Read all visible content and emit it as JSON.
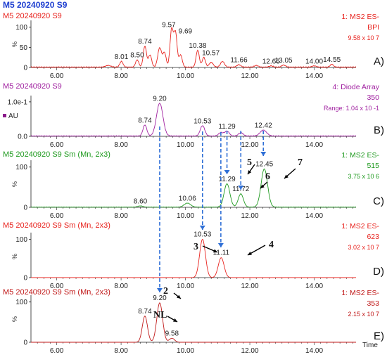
{
  "header": {
    "title": "M5 20240920 S9"
  },
  "x_axis_label": "Time",
  "chart_data": [
    {
      "type": "line",
      "panel_label": "A)",
      "sample": "M5 20240920 S9",
      "right_labels": [
        "1: MS2 ES-",
        "BPI",
        "9.58 x 10 7"
      ],
      "color": "#e8231e",
      "ylabel": "%",
      "y_ticks": [
        "0",
        "50",
        "100"
      ],
      "xlim": [
        5.2,
        15.3
      ],
      "x_ticks": [
        "6.00",
        "8.00",
        "10.00",
        "12.00",
        "14.00"
      ],
      "peak_labels": [
        {
          "x": 8.01,
          "text": "8.01"
        },
        {
          "x": 8.5,
          "text": "8.50"
        },
        {
          "x": 8.74,
          "text": "8.74"
        },
        {
          "x": 9.57,
          "text": "9.57"
        },
        {
          "x": 9.69,
          "text": "9.69"
        },
        {
          "x": 10.38,
          "text": "10.38"
        },
        {
          "x": 10.57,
          "text": "10.57"
        },
        {
          "x": 11.66,
          "text": "11.66"
        },
        {
          "x": 12.66,
          "text": "12.66"
        },
        {
          "x": 13.05,
          "text": "13.05"
        },
        {
          "x": 14.0,
          "text": "14.00"
        },
        {
          "x": 14.55,
          "text": "14.55"
        }
      ],
      "peaks": [
        {
          "x": 7.6,
          "h": 4,
          "w": 0.08
        },
        {
          "x": 8.01,
          "h": 14,
          "w": 0.05
        },
        {
          "x": 8.5,
          "h": 18,
          "w": 0.05
        },
        {
          "x": 8.74,
          "h": 52,
          "w": 0.05
        },
        {
          "x": 8.9,
          "h": 30,
          "w": 0.05
        },
        {
          "x": 9.2,
          "h": 48,
          "w": 0.06
        },
        {
          "x": 9.35,
          "h": 35,
          "w": 0.05
        },
        {
          "x": 9.57,
          "h": 93,
          "w": 0.05
        },
        {
          "x": 9.69,
          "h": 85,
          "w": 0.05
        },
        {
          "x": 9.85,
          "h": 30,
          "w": 0.05
        },
        {
          "x": 10.38,
          "h": 42,
          "w": 0.05
        },
        {
          "x": 10.57,
          "h": 24,
          "w": 0.05
        },
        {
          "x": 10.8,
          "h": 12,
          "w": 0.06
        },
        {
          "x": 11.15,
          "h": 14,
          "w": 0.06
        },
        {
          "x": 11.66,
          "h": 6,
          "w": 0.06
        },
        {
          "x": 12.2,
          "h": 4,
          "w": 0.06
        },
        {
          "x": 12.66,
          "h": 3,
          "w": 0.06
        },
        {
          "x": 13.05,
          "h": 5,
          "w": 0.06
        },
        {
          "x": 14.0,
          "h": 3,
          "w": 0.06
        },
        {
          "x": 14.55,
          "h": 7,
          "w": 0.05
        }
      ],
      "baseline_noise": 2,
      "ylim": [
        0,
        110
      ]
    },
    {
      "type": "line",
      "panel_label": "B)",
      "sample": "M5 20240920 S9",
      "right_labels": [
        "4: Diode Array",
        "350",
        "Range:  1.04 x 10 -1"
      ],
      "color": "#a020a0",
      "ylabel": "AU",
      "y_ticks": [
        "0.0",
        "1.0e-1"
      ],
      "xlim": [
        5.2,
        15.3
      ],
      "x_ticks": [
        "6.00",
        "8.00",
        "10.00",
        "12.00",
        "14.00"
      ],
      "peak_labels": [
        {
          "x": 8.74,
          "text": "8.74"
        },
        {
          "x": 9.2,
          "text": "9.20"
        },
        {
          "x": 10.53,
          "text": "10.53"
        },
        {
          "x": 11.29,
          "text": "11.29"
        },
        {
          "x": 12.42,
          "text": "12.42"
        }
      ],
      "peaks": [
        {
          "x": 8.74,
          "h": 32,
          "w": 0.06
        },
        {
          "x": 9.2,
          "h": 95,
          "w": 0.1
        },
        {
          "x": 10.53,
          "h": 30,
          "w": 0.07
        },
        {
          "x": 11.1,
          "h": 10,
          "w": 0.07
        },
        {
          "x": 11.29,
          "h": 14,
          "w": 0.07
        },
        {
          "x": 11.72,
          "h": 10,
          "w": 0.07
        },
        {
          "x": 12.42,
          "h": 17,
          "w": 0.1
        }
      ],
      "baseline_noise": 2,
      "ylim": [
        0,
        110
      ]
    },
    {
      "type": "line",
      "panel_label": "C)",
      "sample": "M5 20240920 S9 Sm (Mn, 2x3)",
      "right_labels": [
        "1: MS2 ES-",
        "515",
        "3.75 x 10 6"
      ],
      "color": "#1f9a1f",
      "ylabel": "%",
      "y_ticks": [
        "0",
        "100"
      ],
      "xlim": [
        5.2,
        15.3
      ],
      "x_ticks": [
        "6.00",
        "8.00",
        "10.00",
        "12.00",
        "14.00"
      ],
      "peak_labels": [
        {
          "x": 8.6,
          "text": "8.60"
        },
        {
          "x": 10.06,
          "text": "10.06"
        },
        {
          "x": 11.29,
          "text": "11.29"
        },
        {
          "x": 11.72,
          "text": "11.72"
        },
        {
          "x": 12.45,
          "text": "12.45"
        }
      ],
      "peaks": [
        {
          "x": 8.6,
          "h": 3,
          "w": 0.08
        },
        {
          "x": 10.06,
          "h": 10,
          "w": 0.1
        },
        {
          "x": 11.29,
          "h": 58,
          "w": 0.09
        },
        {
          "x": 11.72,
          "h": 33,
          "w": 0.08
        },
        {
          "x": 12.45,
          "h": 95,
          "w": 0.1
        }
      ],
      "baseline_noise": 1,
      "ylim": [
        0,
        110
      ]
    },
    {
      "type": "line",
      "panel_label": "D)",
      "sample": "M5 20240920 S9 Sm (Mn, 2x3)",
      "right_labels": [
        "1: MS2 ES-",
        "623",
        "3.02 x 10 7"
      ],
      "color": "#e8231e",
      "ylabel": "%",
      "y_ticks": [
        "0",
        "100"
      ],
      "xlim": [
        5.2,
        15.3
      ],
      "x_ticks": [
        "6.00",
        "8.00",
        "10.00",
        "12.00",
        "14.00"
      ],
      "peak_labels": [
        {
          "x": 10.53,
          "text": "10.53"
        },
        {
          "x": 11.11,
          "text": "11.11"
        }
      ],
      "peaks": [
        {
          "x": 10.53,
          "h": 100,
          "w": 0.09
        },
        {
          "x": 11.11,
          "h": 52,
          "w": 0.09
        }
      ],
      "baseline_noise": 0,
      "ylim": [
        0,
        110
      ]
    },
    {
      "type": "line",
      "panel_label": "E)",
      "sample": "M5 20240920 S9 Sm (Mn, 2x3)",
      "right_labels": [
        "1: MS2 ES-",
        "353",
        "2.15 x 10 7"
      ],
      "color": "#c01818",
      "ylabel": "%",
      "y_ticks": [
        "0",
        "100"
      ],
      "xlim": [
        5.2,
        15.3
      ],
      "x_ticks": [
        "6.00",
        "8.00",
        "10.00",
        "12.00",
        "14.00"
      ],
      "peak_labels": [
        {
          "x": 8.74,
          "text": "8.74"
        },
        {
          "x": 9.2,
          "text": "9.20"
        },
        {
          "x": 9.58,
          "text": "9.58"
        }
      ],
      "peaks": [
        {
          "x": 8.74,
          "h": 65,
          "w": 0.08
        },
        {
          "x": 9.2,
          "h": 98,
          "w": 0.09
        },
        {
          "x": 9.58,
          "h": 10,
          "w": 0.08
        }
      ],
      "baseline_noise": 0,
      "ylim": [
        0,
        110
      ]
    }
  ],
  "annotations": {
    "compound_labels": [
      {
        "panel": 2,
        "text": "5"
      },
      {
        "panel": 2,
        "text": "6"
      },
      {
        "panel": 2,
        "text": "7"
      },
      {
        "panel": 3,
        "text": "3"
      },
      {
        "panel": 3,
        "text": "4"
      },
      {
        "panel": 4,
        "text": "2"
      },
      {
        "panel": 4,
        "text": "NL"
      }
    ],
    "dashed_line_color": "#2f6fd6",
    "dashed_line_times": [
      9.2,
      10.53,
      11.1,
      11.29,
      11.72,
      12.42
    ]
  }
}
